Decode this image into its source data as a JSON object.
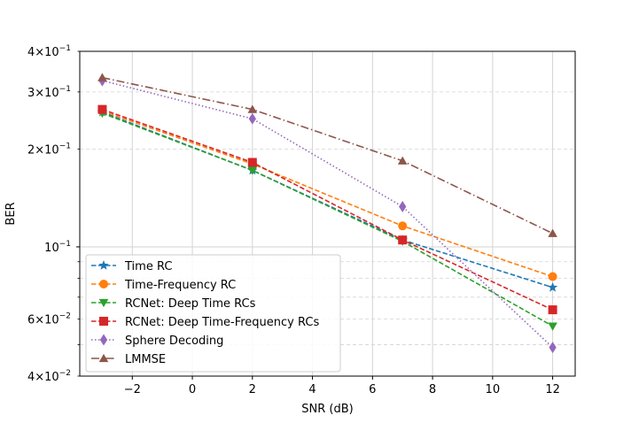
{
  "chart_data": {
    "type": "line",
    "xlabel": "SNR (dB)",
    "ylabel": "BER",
    "yscale": "log",
    "xlim": [
      -3.75,
      12.75
    ],
    "ylim": [
      0.04,
      0.4
    ],
    "grid": true,
    "legend_loc": "lower-left",
    "x": [
      -3,
      2,
      7,
      12
    ],
    "x_ticks": [
      -2,
      0,
      2,
      4,
      6,
      8,
      10,
      12
    ],
    "x_tick_labels": [
      "−2",
      "0",
      "2",
      "4",
      "6",
      "8",
      "10",
      "12"
    ],
    "y_major_ticks": [
      0.1
    ],
    "y_major_labels": [
      {
        "base": "10",
        "exp": "−1"
      }
    ],
    "y_minor_ticks": [
      0.04,
      0.06,
      0.2,
      0.3,
      0.4
    ],
    "y_minor_labels": [
      {
        "mant": "4",
        "exp": "−2"
      },
      {
        "mant": "6",
        "exp": "−2"
      },
      {
        "mant": "2",
        "exp": "−1"
      },
      {
        "mant": "3",
        "exp": "−1"
      },
      {
        "mant": "4",
        "exp": "−1"
      }
    ],
    "y_unlabeled_minor_ticks": [
      0.05,
      0.07,
      0.08,
      0.09
    ],
    "times_symbol": "×",
    "series": [
      {
        "name": "Time RC",
        "values": [
          0.26,
          0.172,
          0.105,
          0.075
        ],
        "color": "#1f77b4",
        "dash": "dashed",
        "marker": "star"
      },
      {
        "name": "Time-Frequency RC",
        "values": [
          0.262,
          0.18,
          0.116,
          0.081
        ],
        "color": "#ff7f0e",
        "dash": "dashed",
        "marker": "circle"
      },
      {
        "name": "RCNet: Deep Time RCs",
        "values": [
          0.258,
          0.172,
          0.104,
          0.057
        ],
        "color": "#2ca02c",
        "dash": "dashed",
        "marker": "triangle-down"
      },
      {
        "name": "RCNet: Deep Time-Frequency RCs",
        "values": [
          0.265,
          0.182,
          0.105,
          0.064
        ],
        "color": "#d62728",
        "dash": "dashed",
        "marker": "square"
      },
      {
        "name": "Sphere Decoding",
        "values": [
          0.325,
          0.248,
          0.133,
          0.049
        ],
        "color": "#9467bd",
        "dash": "dotted",
        "marker": "diamond"
      },
      {
        "name": "LMMSE",
        "values": [
          0.332,
          0.265,
          0.184,
          0.11
        ],
        "color": "#8c564b",
        "dash": "dashdot",
        "marker": "triangle-up"
      }
    ]
  }
}
